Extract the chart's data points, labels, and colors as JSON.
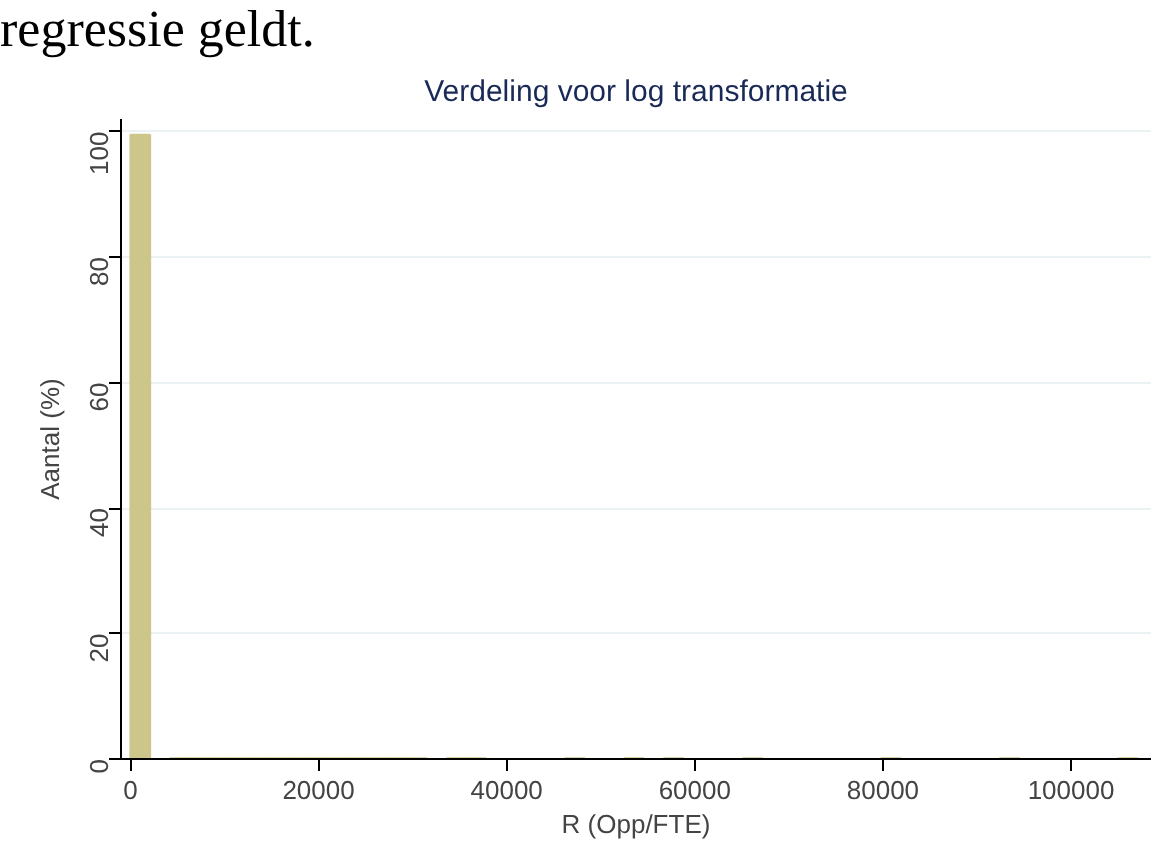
{
  "chart_data": {
    "type": "histogram",
    "title": "Verdeling voor log transformatie",
    "xlabel": "R (Opp/FTE)",
    "ylabel": "Aantal (%)",
    "annotations": [
      "regressie geldt."
    ],
    "bins": [
      0,
      2100,
      4200,
      6300,
      8400,
      10500,
      12600,
      14700,
      16800,
      18900,
      21000,
      23100,
      25200,
      27300,
      29400,
      31500,
      33600,
      35700,
      37800,
      39900,
      42000,
      44100,
      46200,
      48300,
      50400,
      52500,
      54600,
      56700,
      58800,
      60900,
      63000,
      65100,
      67200,
      69300,
      71400,
      73500,
      75600,
      77700,
      79800,
      81900,
      84000,
      86100,
      88200,
      90300,
      92400,
      94500,
      96600,
      98700,
      100800,
      102900,
      105000,
      107100
    ],
    "values": [
      99.5,
      0,
      0.1,
      0.1,
      0.1,
      0.1,
      0.1,
      0.1,
      0.1,
      0.1,
      0.1,
      0.1,
      0.1,
      0.1,
      0.1,
      0,
      0.1,
      0.1,
      0,
      0,
      0,
      0,
      0.1,
      0,
      0,
      0.1,
      0,
      0.1,
      0,
      0,
      0,
      0.1,
      0,
      0,
      0,
      0,
      0,
      0,
      0.1,
      0,
      0,
      0,
      0,
      0,
      0.1,
      0,
      0,
      0,
      0,
      0,
      0.1
    ],
    "color": "#cdc68a",
    "xlim": [
      -1000,
      108500
    ],
    "ylim": [
      0,
      102
    ],
    "xticks": [
      0,
      20000,
      40000,
      60000,
      80000,
      100000
    ],
    "yticks": [
      0,
      20,
      40,
      60,
      80,
      100
    ],
    "grid": "y"
  }
}
